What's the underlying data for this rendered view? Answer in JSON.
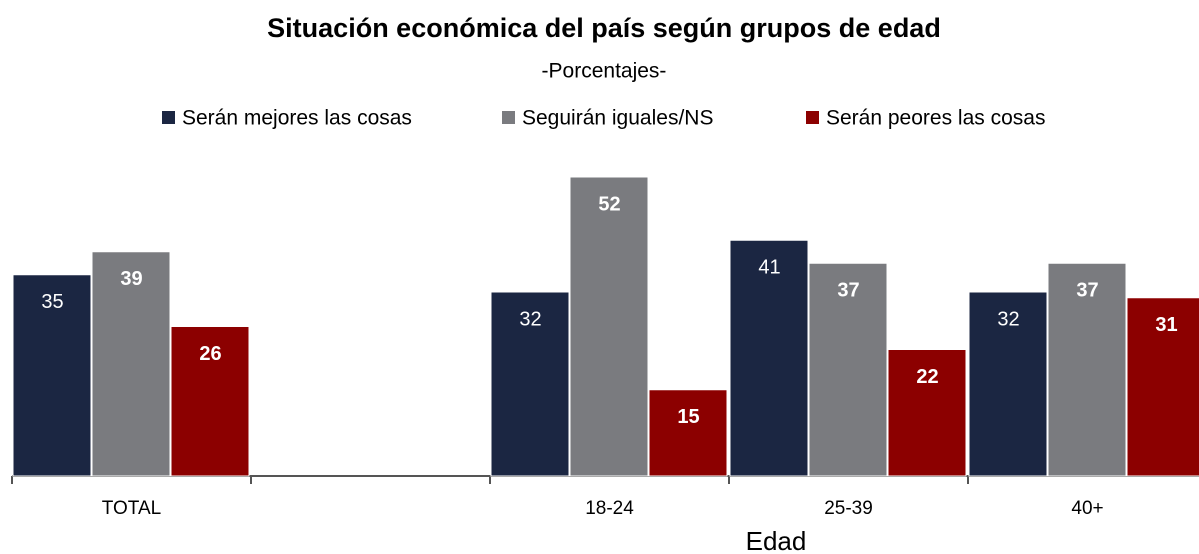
{
  "chart_data": {
    "type": "bar",
    "title": "Situación económica del país  según grupos de edad",
    "subtitle": "-Porcentajes-",
    "x_label": "Edad",
    "categories": [
      "TOTAL",
      null,
      "18-24",
      "25-39",
      "40+"
    ],
    "series": [
      {
        "name": "Serán mejores las cosas",
        "color": "#1b2642",
        "values": [
          35,
          null,
          32,
          41,
          32
        ]
      },
      {
        "name": "Seguirán iguales/NS",
        "color": "#7a7b7f",
        "values": [
          39,
          null,
          52,
          37,
          37
        ]
      },
      {
        "name": "Serán peores las cosas",
        "color": "#8c0000",
        "values": [
          26,
          null,
          15,
          22,
          31
        ]
      }
    ],
    "legend": "top"
  }
}
